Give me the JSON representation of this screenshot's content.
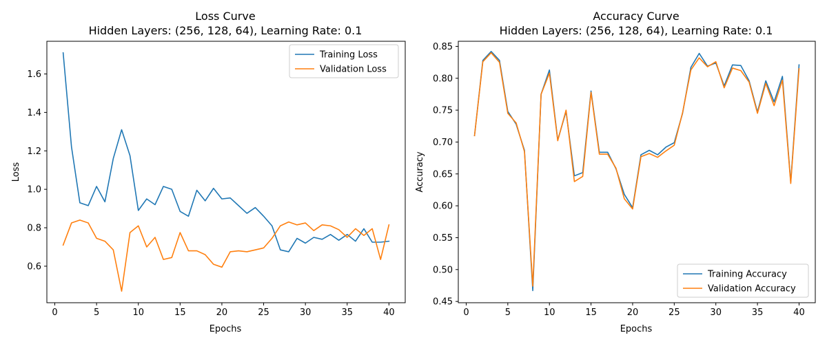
{
  "colors": {
    "training": "#1f77b4",
    "validation": "#ff7f0e"
  },
  "chart_data": [
    {
      "type": "line",
      "title": "Loss Curve",
      "subtitle": "Hidden Layers: (256, 128, 64), Learning Rate: 0.1",
      "xlabel": "Epochs",
      "ylabel": "Loss",
      "xlim": [
        -0.95,
        41.95
      ],
      "ylim": [
        0.41,
        1.77
      ],
      "xticks": [
        0,
        5,
        10,
        15,
        20,
        25,
        30,
        35,
        40
      ],
      "xtick_labels": [
        "0",
        "5",
        "10",
        "15",
        "20",
        "25",
        "30",
        "35",
        "40"
      ],
      "yticks": [
        0.6,
        0.8,
        1.0,
        1.2,
        1.4,
        1.6
      ],
      "ytick_labels": [
        "0.6",
        "0.8",
        "1.0",
        "1.2",
        "1.4",
        "1.6"
      ],
      "legend_position": "top-right",
      "x": [
        1,
        2,
        3,
        4,
        5,
        6,
        7,
        8,
        9,
        10,
        11,
        12,
        13,
        14,
        15,
        16,
        17,
        18,
        19,
        20,
        21,
        22,
        23,
        24,
        25,
        26,
        27,
        28,
        29,
        30,
        31,
        32,
        33,
        34,
        35,
        36,
        37,
        38,
        39,
        40
      ],
      "series": [
        {
          "name": "Training Loss",
          "color_key": "training",
          "values": [
            1.71,
            1.22,
            0.93,
            0.915,
            1.015,
            0.935,
            1.16,
            1.31,
            1.175,
            0.89,
            0.95,
            0.92,
            1.015,
            1.0,
            0.885,
            0.86,
            0.995,
            0.94,
            1.005,
            0.95,
            0.955,
            0.915,
            0.875,
            0.905,
            0.86,
            0.81,
            0.685,
            0.675,
            0.745,
            0.72,
            0.75,
            0.74,
            0.765,
            0.735,
            0.765,
            0.73,
            0.795,
            0.725,
            0.725,
            0.73
          ]
        },
        {
          "name": "Validation Loss",
          "color_key": "validation",
          "values": [
            0.71,
            0.825,
            0.84,
            0.825,
            0.745,
            0.73,
            0.685,
            0.47,
            0.775,
            0.81,
            0.7,
            0.75,
            0.635,
            0.645,
            0.775,
            0.68,
            0.68,
            0.66,
            0.61,
            0.595,
            0.675,
            0.68,
            0.675,
            0.685,
            0.695,
            0.745,
            0.81,
            0.83,
            0.815,
            0.825,
            0.785,
            0.815,
            0.81,
            0.79,
            0.75,
            0.795,
            0.76,
            0.795,
            0.635,
            0.815
          ]
        }
      ]
    },
    {
      "type": "line",
      "title": "Accuracy Curve",
      "subtitle": "Hidden Layers: (256, 128, 64), Learning Rate: 0.1",
      "xlabel": "Epochs",
      "ylabel": "Accuracy",
      "xlim": [
        -0.95,
        41.95
      ],
      "ylim": [
        0.448,
        0.858
      ],
      "xticks": [
        0,
        5,
        10,
        15,
        20,
        25,
        30,
        35,
        40
      ],
      "xtick_labels": [
        "0",
        "5",
        "10",
        "15",
        "20",
        "25",
        "30",
        "35",
        "40"
      ],
      "yticks": [
        0.45,
        0.5,
        0.55,
        0.6,
        0.65,
        0.7,
        0.75,
        0.8,
        0.85
      ],
      "ytick_labels": [
        "0.45",
        "0.50",
        "0.55",
        "0.60",
        "0.65",
        "0.70",
        "0.75",
        "0.80",
        "0.85"
      ],
      "legend_position": "bottom-right",
      "x": [
        1,
        2,
        3,
        4,
        5,
        6,
        7,
        8,
        9,
        10,
        11,
        12,
        13,
        14,
        15,
        16,
        17,
        18,
        19,
        20,
        21,
        22,
        23,
        24,
        25,
        26,
        27,
        28,
        29,
        30,
        31,
        32,
        33,
        34,
        35,
        36,
        37,
        38,
        39,
        40
      ],
      "series": [
        {
          "name": "Training Accuracy",
          "color_key": "training",
          "values": [
            0.71,
            0.828,
            0.842,
            0.828,
            0.748,
            0.728,
            0.687,
            0.467,
            0.775,
            0.813,
            0.703,
            0.748,
            0.647,
            0.652,
            0.78,
            0.684,
            0.684,
            0.658,
            0.618,
            0.597,
            0.68,
            0.687,
            0.68,
            0.692,
            0.699,
            0.745,
            0.817,
            0.839,
            0.819,
            0.824,
            0.788,
            0.821,
            0.82,
            0.796,
            0.747,
            0.796,
            0.763,
            0.803,
            0.637,
            0.821
          ]
        },
        {
          "name": "Validation Accuracy",
          "color_key": "validation",
          "values": [
            0.71,
            0.826,
            0.84,
            0.825,
            0.745,
            0.73,
            0.685,
            0.474,
            0.775,
            0.808,
            0.702,
            0.75,
            0.638,
            0.646,
            0.778,
            0.681,
            0.681,
            0.659,
            0.611,
            0.595,
            0.677,
            0.682,
            0.676,
            0.686,
            0.695,
            0.746,
            0.813,
            0.832,
            0.818,
            0.826,
            0.785,
            0.816,
            0.812,
            0.794,
            0.745,
            0.792,
            0.757,
            0.797,
            0.635,
            0.815
          ]
        }
      ]
    }
  ]
}
